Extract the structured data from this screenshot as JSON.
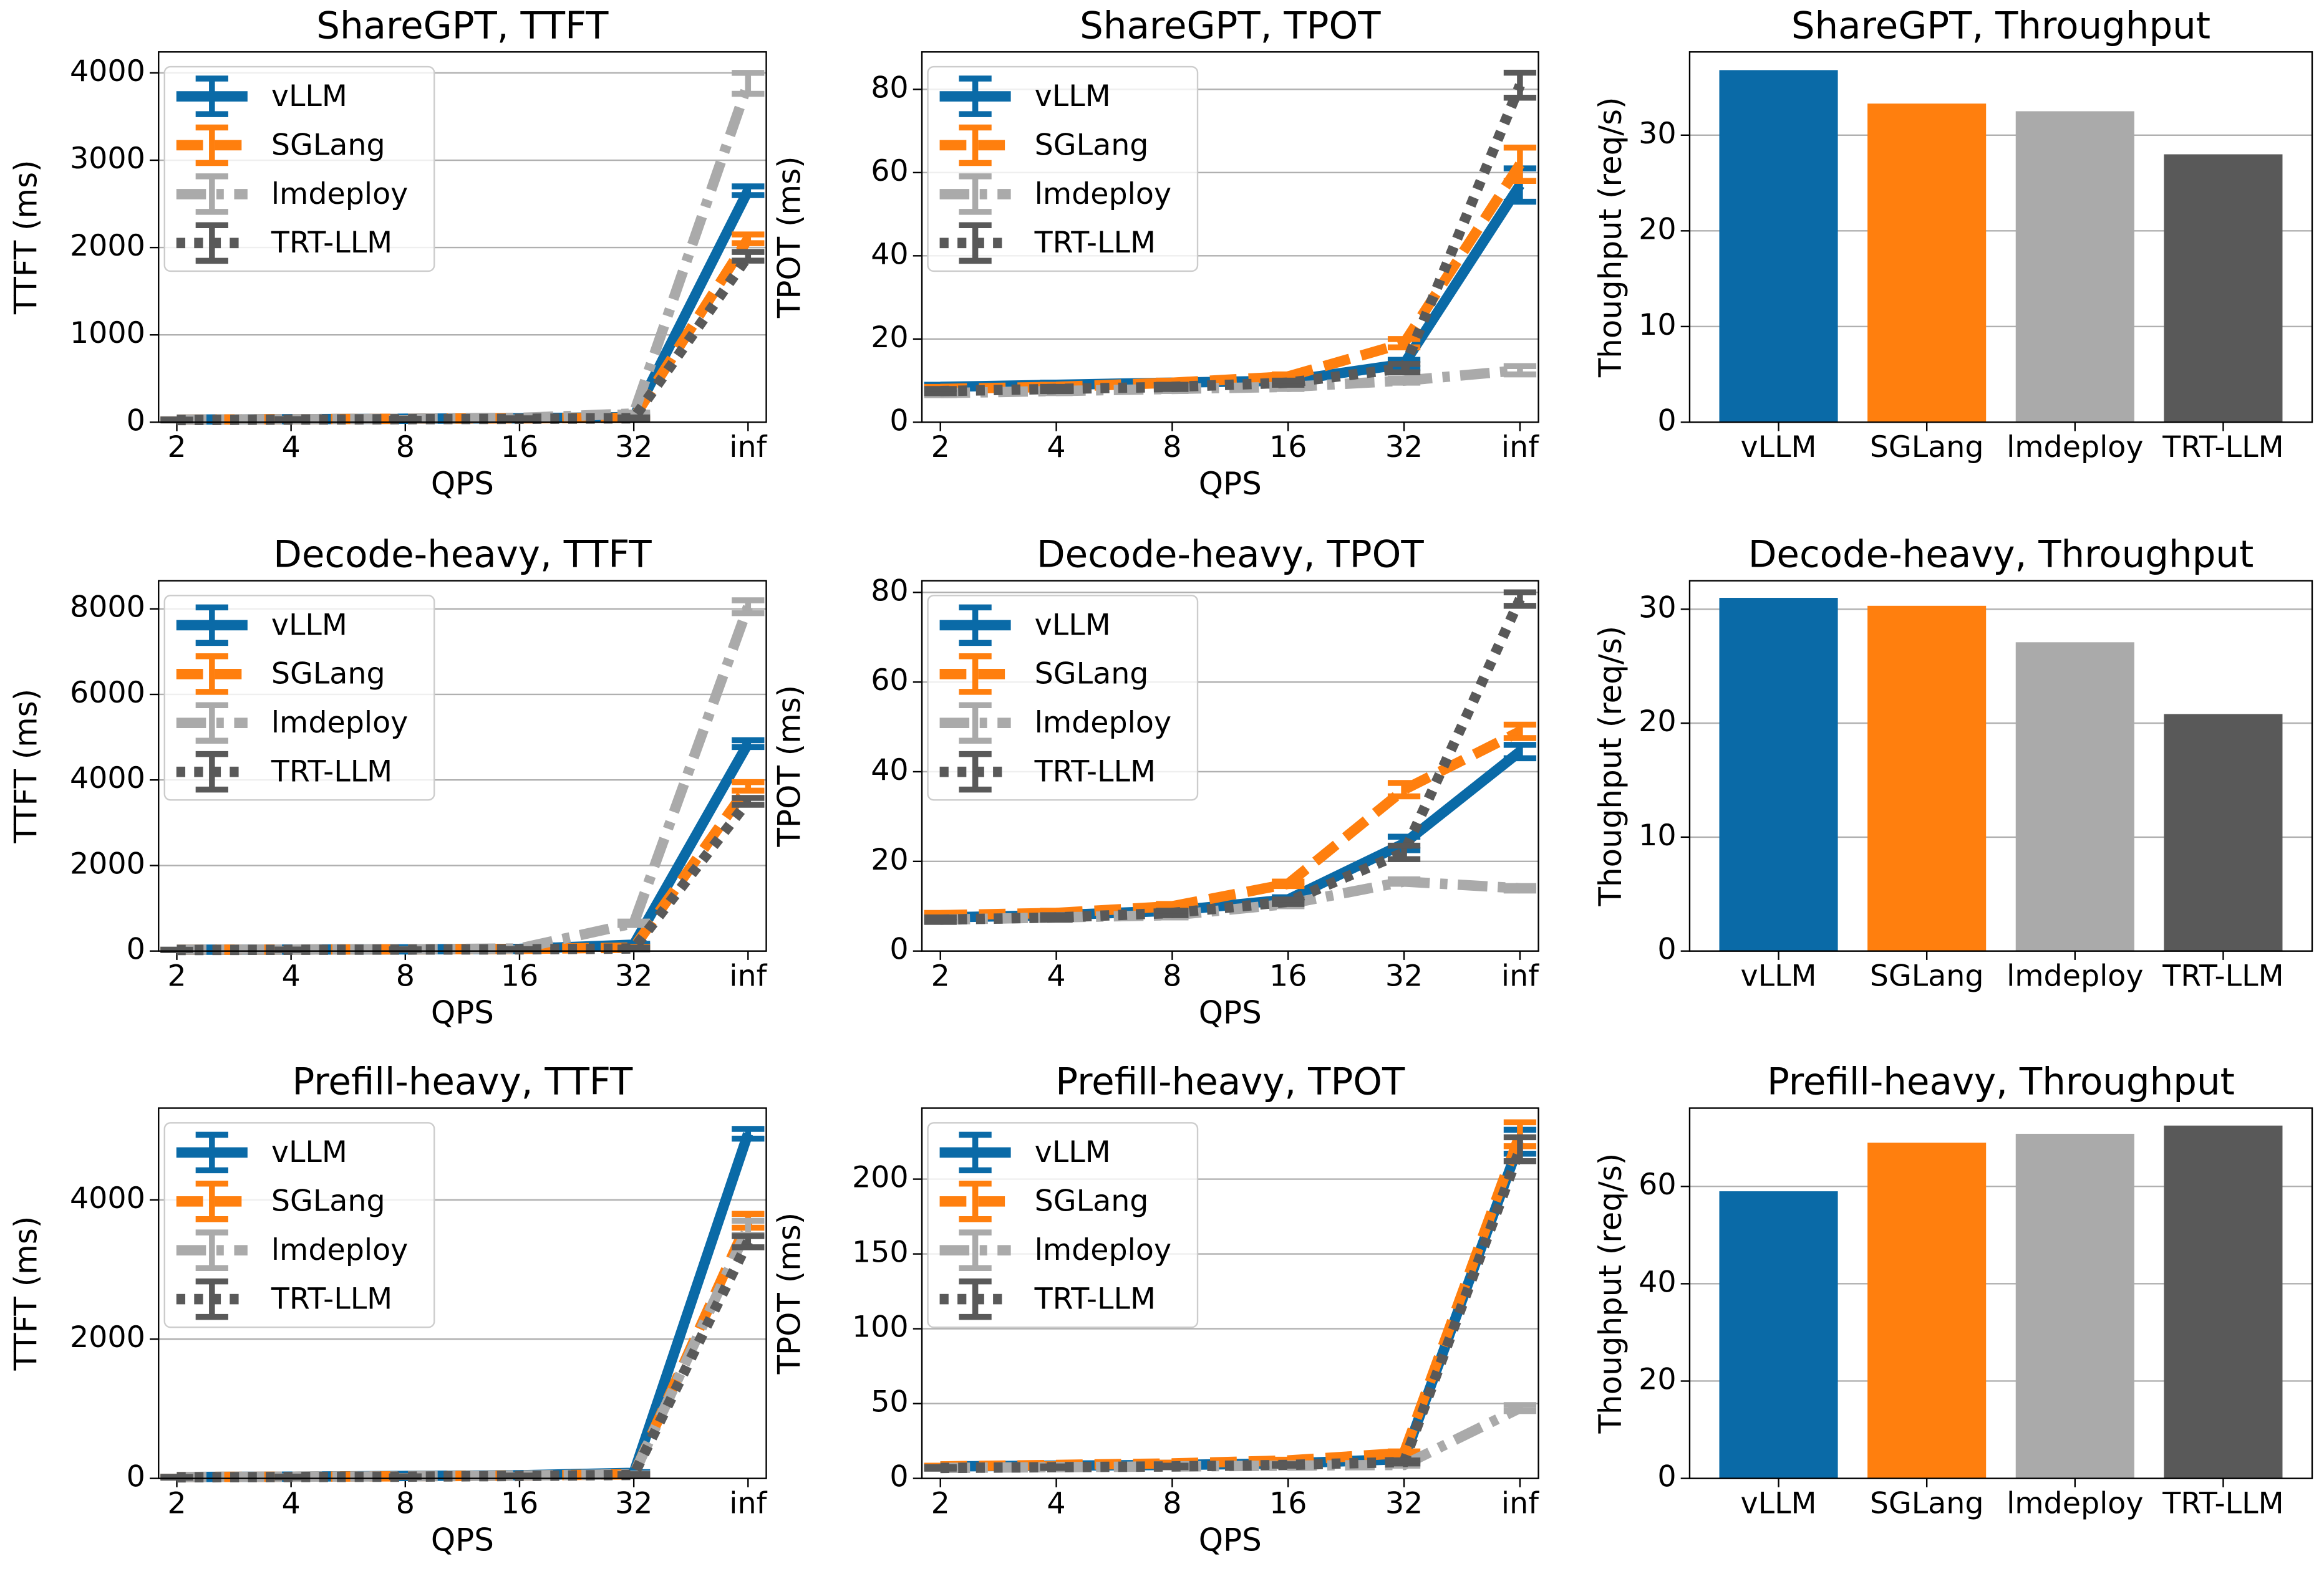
{
  "chart_data": [
    {
      "type": "line",
      "title": "ShareGPT, TTFT",
      "xlabel": "QPS",
      "ylabel": "TTFT (ms)",
      "categories": [
        "2",
        "4",
        "8",
        "16",
        "32",
        "inf"
      ],
      "ylim": [
        0,
        4240
      ],
      "yticks": [
        0,
        1000,
        2000,
        3000,
        4000
      ],
      "grid": true,
      "legend": "upper left",
      "series": [
        {
          "name": "vLLM",
          "color": "#0a6aa7",
          "linestyle": "solid",
          "values": [
            30,
            35,
            40,
            45,
            60,
            2650
          ],
          "errors": [
            5,
            5,
            5,
            5,
            10,
            50
          ]
        },
        {
          "name": "SGLang",
          "color": "#ff7f0e",
          "linestyle": "dashed",
          "values": [
            30,
            35,
            40,
            45,
            50,
            2100
          ],
          "errors": [
            5,
            5,
            5,
            5,
            10,
            50
          ]
        },
        {
          "name": "lmdeploy",
          "color": "#aaaaaa",
          "linestyle": "dashdot",
          "values": [
            30,
            35,
            40,
            50,
            100,
            3880
          ],
          "errors": [
            5,
            5,
            5,
            5,
            10,
            120
          ]
        },
        {
          "name": "TRT-LLM",
          "color": "#595959",
          "linestyle": "dotted",
          "values": [
            25,
            30,
            35,
            40,
            45,
            1900
          ],
          "errors": [
            5,
            5,
            5,
            5,
            10,
            50
          ]
        }
      ]
    },
    {
      "type": "line",
      "title": "ShareGPT, TPOT",
      "xlabel": "QPS",
      "ylabel": "TPOT (ms)",
      "categories": [
        "2",
        "4",
        "8",
        "16",
        "32",
        "inf"
      ],
      "ylim": [
        0,
        89
      ],
      "yticks": [
        0,
        20,
        40,
        60,
        80
      ],
      "grid": true,
      "legend": "upper left",
      "series": [
        {
          "name": "vLLM",
          "color": "#0a6aa7",
          "linestyle": "solid",
          "values": [
            8.5,
            9,
            9.5,
            10,
            14,
            57
          ],
          "errors": [
            0.5,
            0.5,
            0.5,
            0.5,
            1,
            4
          ]
        },
        {
          "name": "SGLang",
          "color": "#ff7f0e",
          "linestyle": "dashed",
          "values": [
            8,
            8.5,
            9.5,
            11,
            19,
            62
          ],
          "errors": [
            0.5,
            0.5,
            0.5,
            0.5,
            1,
            4
          ]
        },
        {
          "name": "lmdeploy",
          "color": "#aaaaaa",
          "linestyle": "dashdot",
          "values": [
            7,
            7.5,
            8,
            8.5,
            10,
            12.5
          ],
          "errors": [
            0.5,
            0.5,
            0.5,
            0.5,
            0.5,
            1
          ]
        },
        {
          "name": "TRT-LLM",
          "color": "#595959",
          "linestyle": "dotted",
          "values": [
            7.5,
            8,
            8.5,
            9.5,
            13,
            81
          ],
          "errors": [
            0.5,
            0.5,
            0.5,
            0.5,
            1,
            3
          ]
        }
      ]
    },
    {
      "type": "bar",
      "title": "ShareGPT, Throughput",
      "ylabel": "Thoughput (req/s)",
      "categories": [
        "vLLM",
        "SGLang",
        "lmdeploy",
        "TRT-LLM"
      ],
      "values": [
        36.8,
        33.3,
        32.5,
        28
      ],
      "colors": [
        "#0a6aa7",
        "#ff7f0e",
        "#aaaaaa",
        "#595959"
      ],
      "ylim": [
        0,
        38.7
      ],
      "yticks": [
        0,
        10,
        20,
        30
      ],
      "grid": true
    },
    {
      "type": "line",
      "title": "Decode-heavy, TTFT",
      "xlabel": "QPS",
      "ylabel": "TTFT (ms)",
      "categories": [
        "2",
        "4",
        "8",
        "16",
        "32",
        "inf"
      ],
      "ylim": [
        0,
        8658
      ],
      "yticks": [
        0,
        2000,
        4000,
        6000,
        8000
      ],
      "grid": true,
      "legend": "upper left",
      "series": [
        {
          "name": "vLLM",
          "color": "#0a6aa7",
          "linestyle": "solid",
          "values": [
            30,
            35,
            40,
            50,
            150,
            4850
          ],
          "errors": [
            5,
            5,
            5,
            5,
            20,
            80
          ]
        },
        {
          "name": "SGLang",
          "color": "#ff7f0e",
          "linestyle": "dashed",
          "values": [
            30,
            35,
            40,
            50,
            80,
            3850
          ],
          "errors": [
            5,
            5,
            5,
            5,
            20,
            100
          ]
        },
        {
          "name": "lmdeploy",
          "color": "#aaaaaa",
          "linestyle": "dashdot",
          "values": [
            30,
            35,
            40,
            60,
            650,
            8050
          ],
          "errors": [
            5,
            5,
            5,
            5,
            40,
            150
          ]
        },
        {
          "name": "TRT-LLM",
          "color": "#595959",
          "linestyle": "dotted",
          "values": [
            25,
            30,
            35,
            40,
            60,
            3500
          ],
          "errors": [
            5,
            5,
            5,
            5,
            20,
            80
          ]
        }
      ]
    },
    {
      "type": "line",
      "title": "Decode-heavy, TPOT",
      "xlabel": "QPS",
      "ylabel": "TPOT (ms)",
      "categories": [
        "2",
        "4",
        "8",
        "16",
        "32",
        "inf"
      ],
      "ylim": [
        0,
        82.6
      ],
      "yticks": [
        0,
        20,
        40,
        60,
        80
      ],
      "grid": true,
      "legend": "upper left",
      "series": [
        {
          "name": "vLLM",
          "color": "#0a6aa7",
          "linestyle": "solid",
          "values": [
            7.5,
            8,
            9,
            11.5,
            24,
            44.5
          ],
          "errors": [
            0.5,
            0.5,
            0.5,
            0.5,
            1.5,
            1.5
          ]
        },
        {
          "name": "SGLang",
          "color": "#ff7f0e",
          "linestyle": "dashed",
          "values": [
            8,
            8.5,
            10,
            15,
            36,
            49
          ],
          "errors": [
            0.5,
            0.5,
            0.5,
            0.5,
            1.5,
            1.5
          ]
        },
        {
          "name": "lmdeploy",
          "color": "#aaaaaa",
          "linestyle": "dashdot",
          "values": [
            7,
            7.5,
            8,
            10.5,
            15.5,
            14
          ],
          "errors": [
            0.5,
            0.5,
            0.5,
            0.5,
            0.5,
            0.5
          ]
        },
        {
          "name": "TRT-LLM",
          "color": "#595959",
          "linestyle": "dotted",
          "values": [
            7,
            7.5,
            8.5,
            11,
            22,
            78.5
          ],
          "errors": [
            0.5,
            0.5,
            0.5,
            0.5,
            1.5,
            1.5
          ]
        }
      ]
    },
    {
      "type": "bar",
      "title": "Decode-heavy, Throughput",
      "ylabel": "Thoughput (req/s)",
      "categories": [
        "vLLM",
        "SGLang",
        "lmdeploy",
        "TRT-LLM"
      ],
      "values": [
        31,
        30.3,
        27.1,
        20.8
      ],
      "colors": [
        "#0a6aa7",
        "#ff7f0e",
        "#aaaaaa",
        "#595959"
      ],
      "ylim": [
        0,
        32.5
      ],
      "yticks": [
        0,
        10,
        20,
        30
      ],
      "grid": true
    },
    {
      "type": "line",
      "title": "Prefill-heavy, TTFT",
      "xlabel": "QPS",
      "ylabel": "TTFT (ms)",
      "categories": [
        "2",
        "4",
        "8",
        "16",
        "32",
        "inf"
      ],
      "ylim": [
        0,
        5319
      ],
      "yticks": [
        0,
        2000,
        4000
      ],
      "grid": true,
      "legend": "upper left",
      "series": [
        {
          "name": "vLLM",
          "color": "#0a6aa7",
          "linestyle": "solid",
          "values": [
            20,
            25,
            35,
            45,
            80,
            4950
          ],
          "errors": [
            5,
            5,
            5,
            5,
            10,
            70
          ]
        },
        {
          "name": "SGLang",
          "color": "#ff7f0e",
          "linestyle": "dashed",
          "values": [
            20,
            25,
            30,
            40,
            60,
            3700
          ],
          "errors": [
            5,
            5,
            5,
            5,
            10,
            100
          ]
        },
        {
          "name": "lmdeploy",
          "color": "#aaaaaa",
          "linestyle": "dashdot",
          "values": [
            20,
            25,
            30,
            40,
            60,
            3600
          ],
          "errors": [
            5,
            5,
            5,
            5,
            10,
            100
          ]
        },
        {
          "name": "TRT-LLM",
          "color": "#595959",
          "linestyle": "dotted",
          "values": [
            15,
            20,
            25,
            35,
            50,
            3400
          ],
          "errors": [
            5,
            5,
            5,
            5,
            10,
            80
          ]
        }
      ]
    },
    {
      "type": "line",
      "title": "Prefill-heavy, TPOT",
      "xlabel": "QPS",
      "ylabel": "TPOT (ms)",
      "categories": [
        "2",
        "4",
        "8",
        "16",
        "32",
        "inf"
      ],
      "ylim": [
        0,
        247.5
      ],
      "yticks": [
        0,
        50,
        100,
        150,
        200
      ],
      "grid": true,
      "legend": "upper left",
      "series": [
        {
          "name": "vLLM",
          "color": "#0a6aa7",
          "linestyle": "solid",
          "values": [
            8,
            8.5,
            9,
            10,
            13,
            225
          ],
          "errors": [
            0.5,
            0.5,
            0.5,
            0.5,
            1,
            8
          ]
        },
        {
          "name": "SGLang",
          "color": "#ff7f0e",
          "linestyle": "dashed",
          "values": [
            8,
            9,
            10,
            12,
            17,
            230
          ],
          "errors": [
            0.5,
            0.5,
            0.5,
            0.5,
            1,
            8
          ]
        },
        {
          "name": "lmdeploy",
          "color": "#aaaaaa",
          "linestyle": "dashdot",
          "values": [
            7,
            7.5,
            8,
            8.5,
            9,
            47
          ],
          "errors": [
            0.5,
            0.5,
            0.5,
            0.5,
            0.5,
            2
          ]
        },
        {
          "name": "TRT-LLM",
          "color": "#595959",
          "linestyle": "dotted",
          "values": [
            7,
            7.5,
            8,
            9,
            11,
            220
          ],
          "errors": [
            0.5,
            0.5,
            0.5,
            0.5,
            1,
            8
          ]
        }
      ]
    },
    {
      "type": "bar",
      "title": "Prefill-heavy, Throughput",
      "ylabel": "Thoughput (req/s)",
      "categories": [
        "vLLM",
        "SGLang",
        "lmdeploy",
        "TRT-LLM"
      ],
      "values": [
        59,
        69,
        70.8,
        72.5
      ],
      "colors": [
        "#0a6aa7",
        "#ff7f0e",
        "#aaaaaa",
        "#595959"
      ],
      "ylim": [
        0,
        76.1
      ],
      "yticks": [
        0,
        20,
        40,
        60
      ],
      "grid": true
    }
  ]
}
